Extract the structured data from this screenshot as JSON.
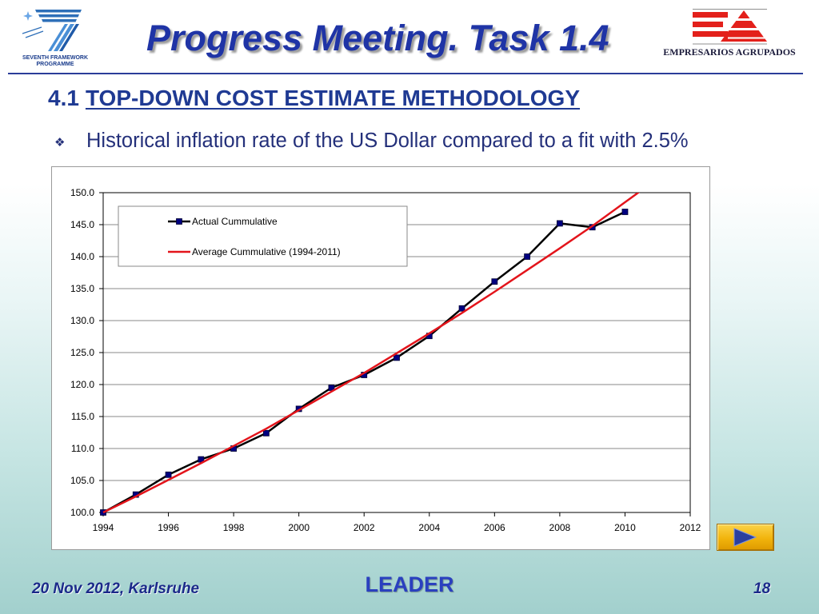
{
  "theme": {
    "title_color": "#1f34a6",
    "heading_color": "#1f3a93",
    "body_color": "#24307a",
    "rule_color": "#2b3d99",
    "footer_color": "#1b2a8a",
    "project_color": "#2a40bf",
    "logo_blue": "#2e6fb8",
    "logo_red": "#e3201b",
    "nav_button_color": "#f2b40c",
    "nav_arrow_color": "#2b3f9e"
  },
  "header": {
    "title": "Progress Meeting. Task 1.4",
    "left_logo": {
      "icon": "fp7-logo",
      "line1": "SEVENTH FRAMEWORK",
      "line2": "PROGRAMME"
    },
    "right_logo": {
      "icon": "empresarios-agrupados-logo",
      "text": "EMPRESARIOS AGRUPADOS"
    }
  },
  "section": {
    "number": "4.1",
    "title": "TOP-DOWN COST ESTIMATE METHODOLOGY"
  },
  "bullets": [
    {
      "symbol": "❖",
      "text": "Historical inflation rate of the US Dollar compared to a fit with 2.5%"
    }
  ],
  "chart_data": {
    "type": "line",
    "xlim": [
      1994,
      2012
    ],
    "ylim": [
      100,
      150
    ],
    "x_tick_labels": [
      "1994",
      "1996",
      "1998",
      "2000",
      "2002",
      "2004",
      "2006",
      "2008",
      "2010",
      "2012"
    ],
    "y_tick_labels": [
      "150.0",
      "145.0",
      "140.0",
      "135.0",
      "130.0",
      "125.0",
      "120.0",
      "115.0",
      "110.0",
      "105.0",
      "100.0"
    ],
    "grid": "horizontal",
    "legend_position": "top-left",
    "series": [
      {
        "name": "Actual Cummulative",
        "color": "#000000",
        "marker": "square",
        "marker_color": "#000080",
        "x": [
          1994,
          1995,
          1996,
          1997,
          1998,
          1999,
          2000,
          2001,
          2002,
          2003,
          2004,
          2005,
          2006,
          2007,
          2008,
          2009,
          2010
        ],
        "y": [
          100.0,
          102.8,
          105.9,
          108.3,
          110.0,
          112.4,
          116.2,
          119.5,
          121.5,
          124.2,
          127.6,
          131.9,
          136.1,
          140.0,
          145.2,
          144.6,
          147.0
        ]
      },
      {
        "name": "Average Cummulative (1994-2011)",
        "color": "#e3141b",
        "marker": "none",
        "x": [
          1994,
          1995,
          1996,
          1997,
          1998,
          1999,
          2000,
          2001,
          2002,
          2003,
          2004,
          2005,
          2006,
          2007,
          2008,
          2009,
          2010,
          2011
        ],
        "y": [
          100.0,
          102.5,
          105.1,
          107.7,
          110.4,
          113.1,
          116.0,
          118.9,
          121.8,
          124.9,
          128.0,
          131.2,
          134.5,
          137.9,
          141.3,
          144.8,
          148.5,
          152.2
        ]
      }
    ]
  },
  "nav": {
    "next_icon": "play-right-icon"
  },
  "footer": {
    "date_location": "20 Nov 2012, Karlsruhe",
    "project": "LEADER",
    "page_number": "18"
  }
}
